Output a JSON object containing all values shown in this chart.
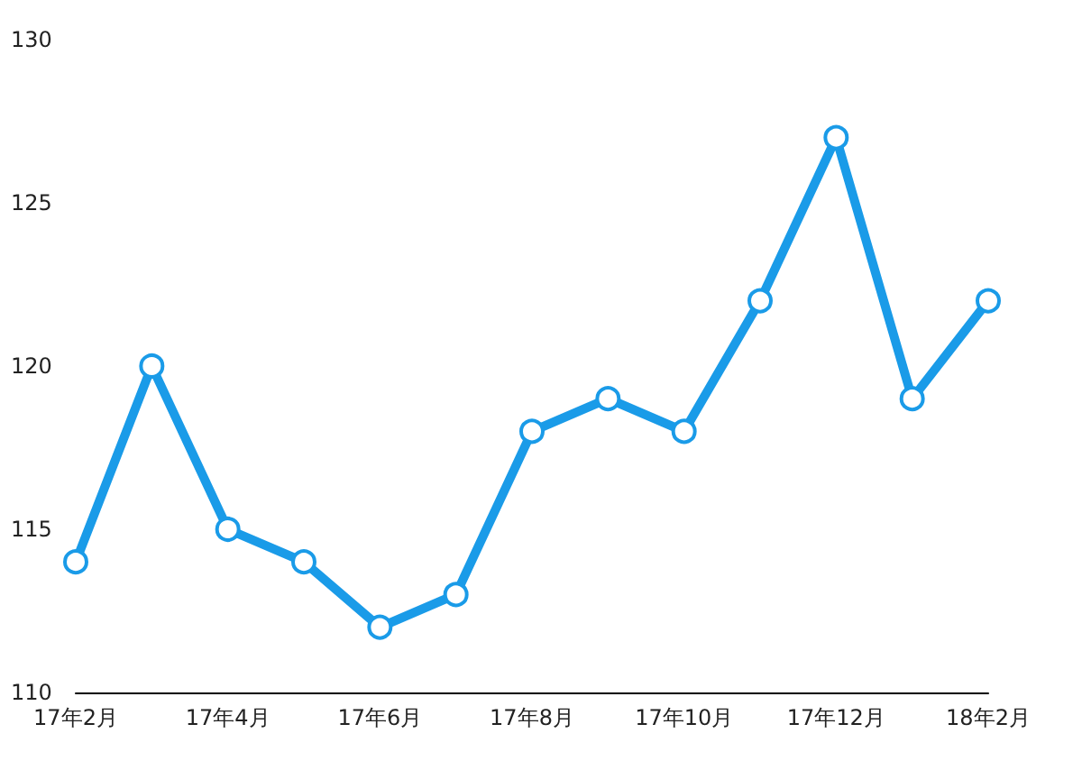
{
  "chart_data": {
    "type": "line",
    "categories": [
      "17年2月",
      null,
      "17年4月",
      null,
      "17年6月",
      null,
      "17年8月",
      null,
      "17年10月",
      null,
      "17年12月",
      null,
      "18年2月"
    ],
    "series": [
      {
        "color": "#1a9be8",
        "values": [
          114,
          120,
          115,
          114,
          112,
          113,
          118,
          119,
          118,
          122,
          127,
          119,
          122
        ]
      }
    ],
    "ylim": [
      110,
      130
    ],
    "yticks": [
      110,
      115,
      120,
      125,
      130
    ],
    "grid": false,
    "marker": "circle",
    "line_style": "solid"
  }
}
